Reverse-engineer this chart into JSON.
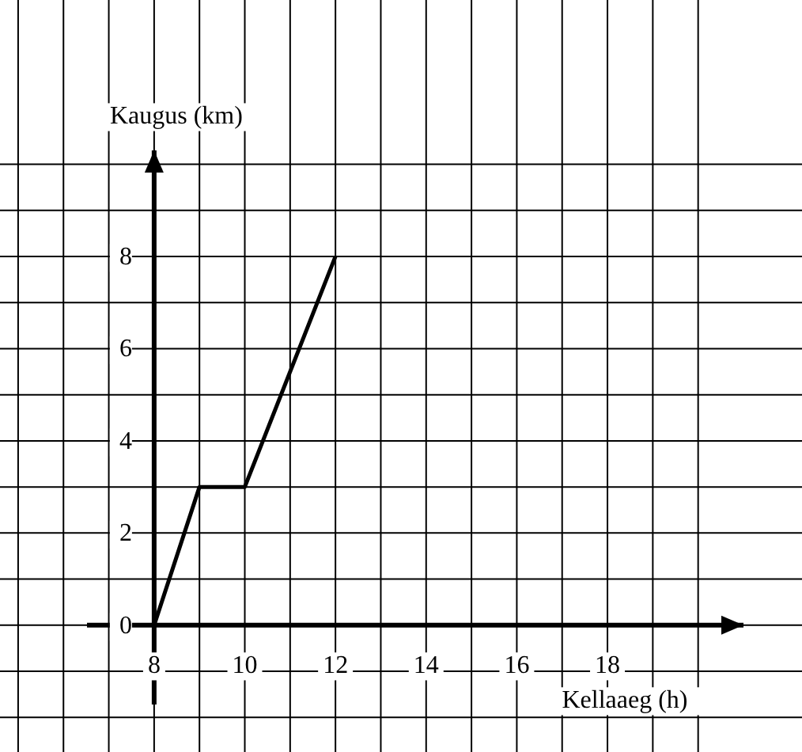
{
  "chart_data": {
    "type": "line",
    "xlabel": "Kellaaeg (h)",
    "ylabel": "Kaugus (km)",
    "x": [
      8,
      9,
      10,
      12
    ],
    "series": [
      {
        "color": "#000000",
        "values": [
          0,
          3,
          3,
          8
        ]
      }
    ],
    "xlim": [
      4.6,
      21
    ],
    "ylim": [
      -2.75,
      10.3
    ],
    "xticks": [
      {
        "value": 5,
        "label": null
      },
      {
        "value": 6,
        "label": null
      },
      {
        "value": 7,
        "label": null
      },
      8,
      {
        "value": 9,
        "label": null
      },
      10,
      {
        "value": 11,
        "label": null
      },
      12,
      {
        "value": 13,
        "label": null
      },
      14,
      {
        "value": 15,
        "label": null
      },
      16,
      {
        "value": 17,
        "label": null
      },
      18,
      {
        "value": 19,
        "label": null
      },
      {
        "value": 20,
        "label": null
      }
    ],
    "yticks": [
      {
        "value": -2,
        "label": null
      },
      {
        "value": -1,
        "label": null
      },
      0,
      {
        "value": 1,
        "label": null
      },
      2,
      {
        "value": 3,
        "label": null
      },
      4,
      {
        "value": 5,
        "label": null
      },
      6,
      {
        "value": 7,
        "label": null
      },
      8,
      {
        "value": 9,
        "label": null
      },
      {
        "value": 10,
        "label": null
      }
    ],
    "grid": true,
    "marker": "none",
    "line_style": "solid"
  }
}
